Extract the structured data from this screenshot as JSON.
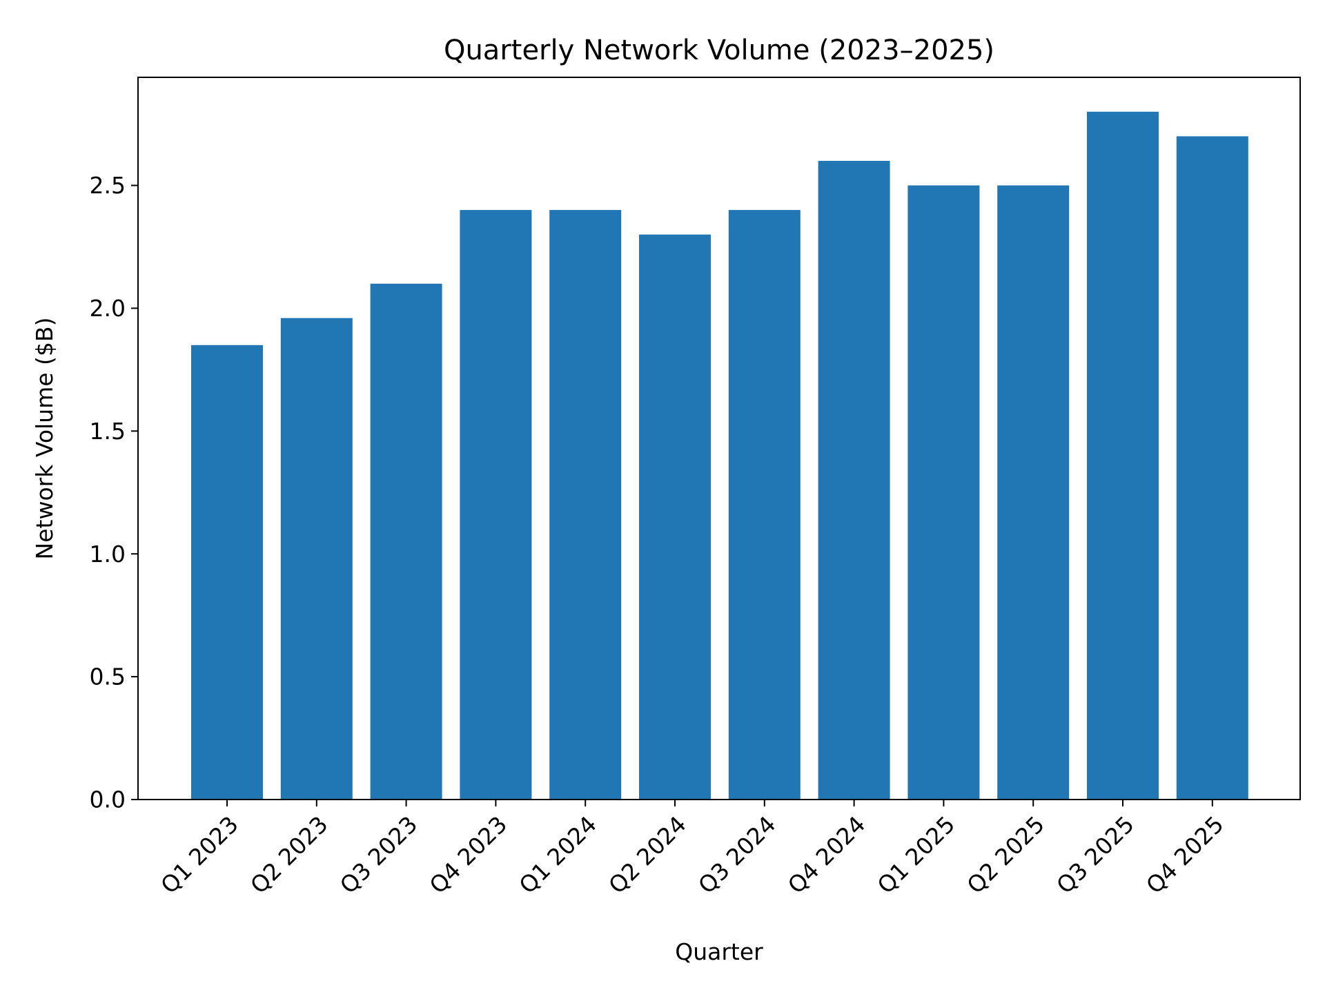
{
  "chart_data": {
    "type": "bar",
    "title": "Quarterly Network Volume (2023–2025)",
    "xlabel": "Quarter",
    "ylabel": "Network Volume ($B)",
    "categories": [
      "Q1 2023",
      "Q2 2023",
      "Q3 2023",
      "Q4 2023",
      "Q1 2024",
      "Q2 2024",
      "Q3 2024",
      "Q4 2024",
      "Q1 2025",
      "Q2 2025",
      "Q3 2025",
      "Q4 2025"
    ],
    "values": [
      1.85,
      1.96,
      2.1,
      2.4,
      2.4,
      2.3,
      2.4,
      2.6,
      2.5,
      2.5,
      2.8,
      2.7
    ],
    "ylim": [
      0,
      2.94
    ],
    "yticks": [
      "0.0",
      "0.5",
      "1.0",
      "1.5",
      "2.0",
      "2.5"
    ],
    "grid": false,
    "legend": "none",
    "bar_color": "#2077b4"
  }
}
